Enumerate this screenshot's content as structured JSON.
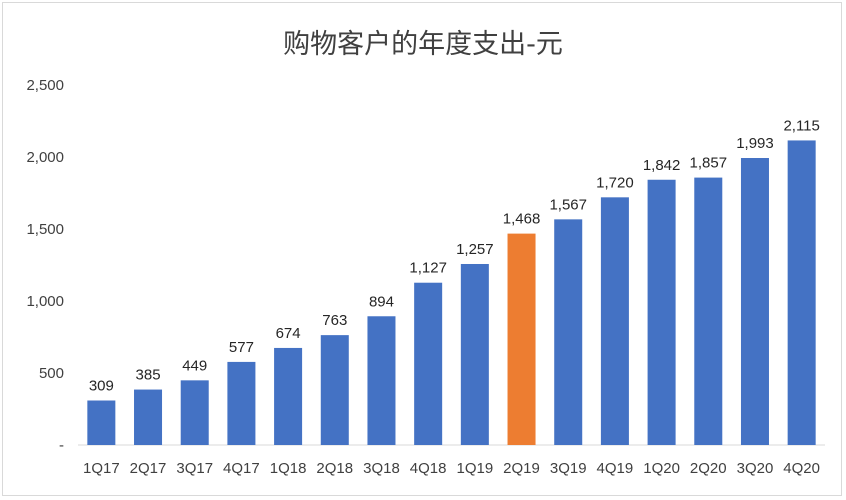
{
  "chart_data": {
    "type": "bar",
    "title": "购物客户的年度支出-元",
    "categories": [
      "1Q17",
      "2Q17",
      "3Q17",
      "4Q17",
      "1Q18",
      "2Q18",
      "3Q18",
      "4Q18",
      "1Q19",
      "2Q19",
      "3Q19",
      "4Q19",
      "1Q20",
      "2Q20",
      "3Q20",
      "4Q20"
    ],
    "values": [
      309,
      385,
      449,
      577,
      674,
      763,
      894,
      1127,
      1257,
      1468,
      1567,
      1720,
      1842,
      1857,
      1993,
      2115
    ],
    "data_labels": [
      "309",
      "385",
      "449",
      "577",
      "674",
      "763",
      "894",
      "1,127",
      "1,257",
      "1,468",
      "1,567",
      "1,720",
      "1,842",
      "1,857",
      "1,993",
      "2,115"
    ],
    "ylim": [
      0,
      2500
    ],
    "yticks": [
      0,
      500,
      1000,
      1500,
      2000,
      2500
    ],
    "ytick_labels": [
      "-",
      "500",
      "1,000",
      "1,500",
      "2,000",
      "2,500"
    ],
    "grid": false,
    "legend": "none",
    "colors": {
      "default": "#4472c4",
      "highlight": "#ed7d31"
    },
    "highlight_index": 9
  }
}
